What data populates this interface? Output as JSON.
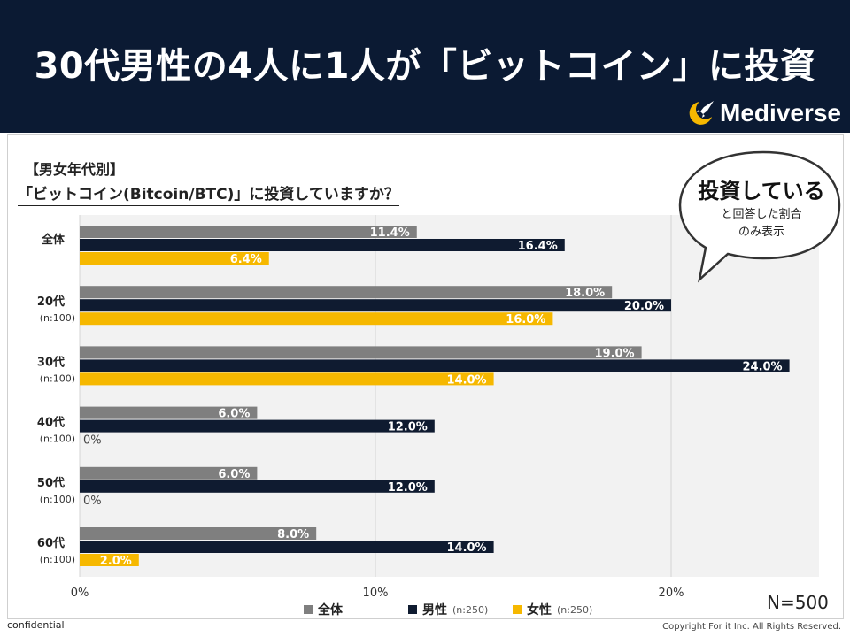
{
  "header": {
    "title": "30代男性の4人に1人が「ビットコイン」に投資"
  },
  "logo": {
    "text": "Mediverse"
  },
  "subtitle": {
    "line1": "【男女年代別】",
    "line2": "「ビットコイン(Bitcoin/BTC)」に投資していますか？"
  },
  "bubble": {
    "main": "投資している",
    "sub1": "と回答した割合",
    "sub2": "のみ表示"
  },
  "n_total": "N=500",
  "legend": [
    {
      "label": "全体",
      "n": ""
    },
    {
      "label": "男性",
      "n": "(n:250)"
    },
    {
      "label": "女性",
      "n": "(n:250)"
    }
  ],
  "footer": {
    "left": "confidential",
    "right": "Copyright For it Inc. All Rights Reserved."
  },
  "colors": {
    "header_bg": "#0b1a33",
    "all": "#7f7f7f",
    "male": "#0f1b30",
    "female": "#f6b800",
    "plot_bg": "#f2f2f2"
  },
  "chart_data": {
    "type": "bar",
    "orientation": "horizontal",
    "title": "「ビットコイン(Bitcoin/BTC)」に投資していますか？",
    "categories": [
      "全体",
      "20代",
      "30代",
      "40代",
      "50代",
      "60代"
    ],
    "category_notes": [
      "",
      "(n:100)",
      "(n:100)",
      "(n:100)",
      "(n:100)",
      "(n:100)"
    ],
    "series": [
      {
        "name": "全体",
        "values": [
          11.4,
          18.0,
          19.0,
          6.0,
          6.0,
          8.0
        ],
        "labels": [
          "11.4%",
          "18.0%",
          "19.0%",
          "6.0%",
          "6.0%",
          "8.0%"
        ]
      },
      {
        "name": "男性",
        "values": [
          16.4,
          20.0,
          24.0,
          12.0,
          12.0,
          14.0
        ],
        "labels": [
          "16.4%",
          "20.0%",
          "24.0%",
          "12.0%",
          "12.0%",
          "14.0%"
        ]
      },
      {
        "name": "女性",
        "values": [
          6.4,
          16.0,
          14.0,
          0,
          0,
          2.0
        ],
        "labels": [
          "6.4%",
          "16.0%",
          "14.0%",
          "0%",
          "0%",
          "2.0%"
        ]
      }
    ],
    "xlim": [
      0,
      24.5
    ],
    "xticks": [
      0,
      10,
      20
    ],
    "xtick_labels": [
      "0%",
      "10%",
      "20%"
    ],
    "grid": true,
    "legend_position": "bottom"
  }
}
